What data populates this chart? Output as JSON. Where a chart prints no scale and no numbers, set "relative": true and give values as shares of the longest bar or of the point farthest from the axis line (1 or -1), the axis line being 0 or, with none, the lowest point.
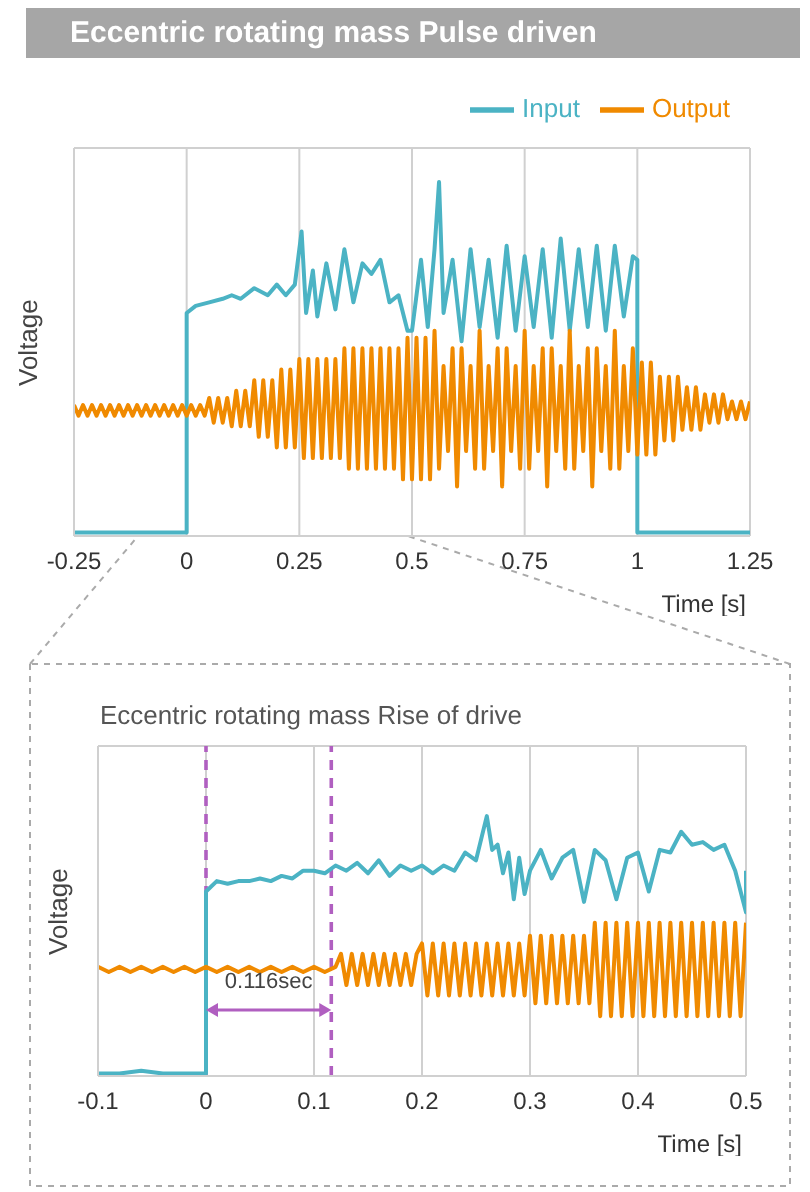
{
  "chart_data": [
    {
      "type": "line",
      "title": "Eccentric rotating mass  Pulse driven",
      "xlabel": "Time [s]",
      "ylabel": "Voltage",
      "relative": true,
      "xlim": [
        -0.25,
        1.25
      ],
      "xticks": [
        -0.25,
        0,
        0.25,
        0.5,
        0.75,
        1,
        1.25
      ],
      "grid": true,
      "legend": "top right",
      "line_style": "solid",
      "series": [
        {
          "name": "Input",
          "color": "#4bb3c4",
          "x": [
            -0.25,
            -0.2,
            -0.15,
            -0.1,
            -0.05,
            0,
            0,
            0.02,
            0.05,
            0.08,
            0.1,
            0.12,
            0.15,
            0.18,
            0.2,
            0.22,
            0.24,
            0.255,
            0.265,
            0.28,
            0.29,
            0.31,
            0.33,
            0.35,
            0.37,
            0.39,
            0.41,
            0.43,
            0.45,
            0.47,
            0.49,
            0.5,
            0.52,
            0.535,
            0.55,
            0.56,
            0.57,
            0.59,
            0.61,
            0.63,
            0.65,
            0.67,
            0.69,
            0.71,
            0.73,
            0.75,
            0.77,
            0.79,
            0.81,
            0.83,
            0.85,
            0.87,
            0.89,
            0.91,
            0.93,
            0.95,
            0.97,
            0.99,
            1,
            1,
            1.05,
            1.1,
            1.15,
            1.2,
            1.25
          ],
          "values": [
            0.01,
            0.01,
            0.01,
            0.01,
            0.01,
            0.01,
            0.63,
            0.65,
            0.66,
            0.67,
            0.68,
            0.67,
            0.7,
            0.68,
            0.71,
            0.68,
            0.71,
            0.86,
            0.63,
            0.75,
            0.62,
            0.77,
            0.64,
            0.81,
            0.66,
            0.77,
            0.74,
            0.78,
            0.66,
            0.68,
            0.58,
            0.58,
            0.78,
            0.59,
            0.81,
            1,
            0.63,
            0.78,
            0.55,
            0.81,
            0.59,
            0.78,
            0.56,
            0.82,
            0.58,
            0.79,
            0.59,
            0.81,
            0.56,
            0.84,
            0.58,
            0.81,
            0.59,
            0.82,
            0.58,
            0.82,
            0.62,
            0.79,
            0.78,
            0.01,
            0.01,
            0.01,
            0.01,
            0.01,
            0.01
          ]
        },
        {
          "name": "Output",
          "color": "#f08a00",
          "x": [
            -0.25,
            -0.24,
            -0.23,
            -0.22,
            -0.21,
            -0.2,
            -0.19,
            -0.18,
            -0.17,
            -0.16,
            -0.15,
            -0.14,
            -0.13,
            -0.12,
            -0.11,
            -0.1,
            -0.09,
            -0.08,
            -0.07,
            -0.06,
            -0.05,
            -0.04,
            -0.03,
            -0.02,
            -0.01,
            0,
            0.01,
            0.02,
            0.03,
            0.04,
            0.05,
            0.06,
            0.07,
            0.08,
            0.09,
            0.1,
            0.11,
            0.12,
            0.13,
            0.14,
            0.15,
            0.16,
            0.17,
            0.18,
            0.19,
            0.2,
            0.21,
            0.22,
            0.23,
            0.24,
            0.25,
            0.26,
            0.27,
            0.28,
            0.29,
            0.3,
            0.31,
            0.32,
            0.33,
            0.34,
            0.35,
            0.36,
            0.37,
            0.38,
            0.39,
            0.4,
            0.41,
            0.42,
            0.43,
            0.44,
            0.45,
            0.46,
            0.47,
            0.48,
            0.49,
            0.5,
            0.51,
            0.52,
            0.53,
            0.54,
            0.55,
            0.56,
            0.57,
            0.58,
            0.59,
            0.6,
            0.61,
            0.62,
            0.63,
            0.64,
            0.65,
            0.66,
            0.67,
            0.68,
            0.69,
            0.7,
            0.71,
            0.72,
            0.73,
            0.74,
            0.75,
            0.76,
            0.77,
            0.78,
            0.79,
            0.8,
            0.81,
            0.82,
            0.83,
            0.84,
            0.85,
            0.86,
            0.87,
            0.88,
            0.89,
            0.9,
            0.91,
            0.92,
            0.93,
            0.94,
            0.95,
            0.96,
            0.97,
            0.98,
            0.99,
            1,
            1.01,
            1.02,
            1.03,
            1.04,
            1.05,
            1.06,
            1.07,
            1.08,
            1.09,
            1.1,
            1.11,
            1.12,
            1.13,
            1.14,
            1.15,
            1.16,
            1.17,
            1.18,
            1.19,
            1.2,
            1.21,
            1.22,
            1.23,
            1.24,
            1.25
          ],
          "values": [
            0.37,
            0.34,
            0.37,
            0.34,
            0.37,
            0.34,
            0.37,
            0.34,
            0.37,
            0.34,
            0.37,
            0.34,
            0.37,
            0.34,
            0.37,
            0.34,
            0.37,
            0.34,
            0.37,
            0.34,
            0.37,
            0.34,
            0.37,
            0.34,
            0.37,
            0.34,
            0.37,
            0.34,
            0.37,
            0.34,
            0.39,
            0.32,
            0.39,
            0.32,
            0.39,
            0.31,
            0.41,
            0.31,
            0.41,
            0.31,
            0.44,
            0.28,
            0.44,
            0.28,
            0.44,
            0.25,
            0.47,
            0.25,
            0.47,
            0.25,
            0.5,
            0.22,
            0.5,
            0.22,
            0.5,
            0.22,
            0.5,
            0.22,
            0.5,
            0.22,
            0.53,
            0.19,
            0.53,
            0.19,
            0.53,
            0.19,
            0.53,
            0.19,
            0.53,
            0.19,
            0.53,
            0.19,
            0.53,
            0.16,
            0.56,
            0.16,
            0.56,
            0.16,
            0.56,
            0.16,
            0.58,
            0.19,
            0.48,
            0.24,
            0.53,
            0.14,
            0.53,
            0.24,
            0.48,
            0.19,
            0.58,
            0.19,
            0.48,
            0.24,
            0.53,
            0.14,
            0.53,
            0.24,
            0.48,
            0.19,
            0.58,
            0.19,
            0.48,
            0.24,
            0.53,
            0.14,
            0.53,
            0.24,
            0.48,
            0.19,
            0.58,
            0.19,
            0.48,
            0.24,
            0.53,
            0.14,
            0.53,
            0.24,
            0.48,
            0.19,
            0.58,
            0.19,
            0.48,
            0.24,
            0.53,
            0.23,
            0.49,
            0.23,
            0.49,
            0.23,
            0.45,
            0.27,
            0.45,
            0.27,
            0.45,
            0.3,
            0.42,
            0.3,
            0.42,
            0.3,
            0.4,
            0.32,
            0.4,
            0.32,
            0.4,
            0.33,
            0.38,
            0.33,
            0.38,
            0.33,
            0.38
          ]
        }
      ]
    },
    {
      "type": "line",
      "title": "Eccentric rotating mass  Rise of drive",
      "xlabel": "Time [s]",
      "ylabel": "Voltage",
      "relative": true,
      "xlim": [
        -0.1,
        0.5
      ],
      "xticks": [
        -0.1,
        0,
        0.1,
        0.2,
        0.3,
        0.4,
        0.5
      ],
      "grid": true,
      "line_style": "solid",
      "annotations": [
        "0.116sec"
      ],
      "ref_lines": [
        {
          "axis": "x",
          "value": 0,
          "color": "#b05fc0",
          "line_style": "dashed"
        },
        {
          "axis": "x",
          "value": 0.116,
          "color": "#b05fc0",
          "line_style": "dashed"
        }
      ],
      "series": [
        {
          "color": "#4bb3c4",
          "x": [
            -0.1,
            -0.08,
            -0.06,
            -0.04,
            -0.02,
            -0.005,
            0,
            0,
            0.01,
            0.02,
            0.03,
            0.04,
            0.05,
            0.06,
            0.07,
            0.08,
            0.09,
            0.1,
            0.11,
            0.12,
            0.13,
            0.14,
            0.15,
            0.16,
            0.17,
            0.18,
            0.19,
            0.2,
            0.21,
            0.22,
            0.23,
            0.24,
            0.25,
            0.26,
            0.265,
            0.27,
            0.275,
            0.28,
            0.285,
            0.29,
            0.295,
            0.3,
            0.31,
            0.32,
            0.33,
            0.34,
            0.35,
            0.36,
            0.37,
            0.38,
            0.39,
            0.4,
            0.41,
            0.42,
            0.43,
            0.44,
            0.45,
            0.46,
            0.47,
            0.48,
            0.49,
            0.5,
            0.5
          ],
          "values": [
            0.01,
            0.01,
            0.02,
            0.01,
            0.01,
            0.01,
            0.01,
            0.71,
            0.75,
            0.74,
            0.75,
            0.75,
            0.76,
            0.75,
            0.77,
            0.76,
            0.79,
            0.79,
            0.78,
            0.81,
            0.79,
            0.82,
            0.78,
            0.83,
            0.77,
            0.81,
            0.79,
            0.81,
            0.78,
            0.81,
            0.79,
            0.86,
            0.83,
            1,
            0.87,
            0.89,
            0.78,
            0.86,
            0.68,
            0.84,
            0.7,
            0.79,
            0.87,
            0.76,
            0.84,
            0.87,
            0.67,
            0.87,
            0.83,
            0.68,
            0.84,
            0.86,
            0.71,
            0.87,
            0.86,
            0.94,
            0.89,
            0.9,
            0.87,
            0.89,
            0.79,
            0.63,
            0.79
          ]
        },
        {
          "color": "#f08a00",
          "x": [
            -0.1,
            -0.09,
            -0.08,
            -0.07,
            -0.06,
            -0.05,
            -0.04,
            -0.03,
            -0.02,
            -0.01,
            0,
            0.01,
            0.02,
            0.03,
            0.04,
            0.05,
            0.06,
            0.07,
            0.08,
            0.09,
            0.1,
            0.11,
            0.12,
            0.125,
            0.13,
            0.135,
            0.14,
            0.145,
            0.15,
            0.155,
            0.16,
            0.165,
            0.17,
            0.175,
            0.18,
            0.185,
            0.19,
            0.195,
            0.2,
            0.205,
            0.21,
            0.215,
            0.22,
            0.225,
            0.23,
            0.235,
            0.24,
            0.245,
            0.25,
            0.255,
            0.26,
            0.265,
            0.27,
            0.275,
            0.28,
            0.285,
            0.29,
            0.295,
            0.3,
            0.305,
            0.31,
            0.315,
            0.32,
            0.325,
            0.33,
            0.335,
            0.34,
            0.345,
            0.35,
            0.355,
            0.36,
            0.365,
            0.37,
            0.375,
            0.38,
            0.385,
            0.39,
            0.395,
            0.4,
            0.405,
            0.41,
            0.415,
            0.42,
            0.425,
            0.43,
            0.435,
            0.44,
            0.445,
            0.45,
            0.455,
            0.46,
            0.465,
            0.47,
            0.475,
            0.48,
            0.485,
            0.49,
            0.495,
            0.5
          ],
          "values": [
            0.42,
            0.4,
            0.42,
            0.4,
            0.42,
            0.4,
            0.42,
            0.4,
            0.42,
            0.4,
            0.42,
            0.4,
            0.42,
            0.4,
            0.42,
            0.4,
            0.42,
            0.4,
            0.42,
            0.4,
            0.42,
            0.4,
            0.42,
            0.47,
            0.35,
            0.47,
            0.35,
            0.47,
            0.35,
            0.47,
            0.35,
            0.47,
            0.35,
            0.47,
            0.35,
            0.47,
            0.35,
            0.47,
            0.51,
            0.31,
            0.51,
            0.31,
            0.51,
            0.31,
            0.51,
            0.31,
            0.51,
            0.31,
            0.51,
            0.31,
            0.51,
            0.31,
            0.51,
            0.31,
            0.51,
            0.31,
            0.51,
            0.31,
            0.54,
            0.28,
            0.54,
            0.28,
            0.54,
            0.28,
            0.54,
            0.28,
            0.54,
            0.28,
            0.54,
            0.28,
            0.59,
            0.23,
            0.59,
            0.23,
            0.59,
            0.23,
            0.59,
            0.23,
            0.59,
            0.23,
            0.59,
            0.23,
            0.59,
            0.23,
            0.59,
            0.23,
            0.59,
            0.23,
            0.59,
            0.23,
            0.59,
            0.23,
            0.59,
            0.23,
            0.59,
            0.23,
            0.59,
            0.23,
            0.59
          ]
        }
      ]
    }
  ]
}
